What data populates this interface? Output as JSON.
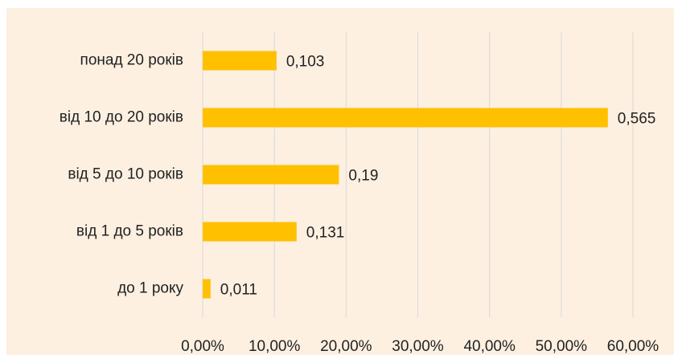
{
  "chart_data": {
    "type": "hbar",
    "categories": [
      "понад 20 років",
      "від 10 до 20 років",
      "від 5 до 10 років",
      "від 1 до 5 років",
      "до 1 року"
    ],
    "values": [
      10.3,
      56.5,
      19,
      13.1,
      1.1
    ],
    "value_labels": [
      "0,103",
      "0,565",
      "0,19",
      "0,131",
      "0,011"
    ],
    "color": "#ffc000",
    "xlim": [
      0,
      60
    ],
    "xticks": [
      {
        "value": 0,
        "label": "0,00%"
      },
      {
        "value": 10,
        "label": "10,00%"
      },
      {
        "value": 20,
        "label": "20,00%"
      },
      {
        "value": 30,
        "label": "30,00%"
      },
      {
        "value": 40,
        "label": "40,00%"
      },
      {
        "value": 50,
        "label": "50,00%"
      },
      {
        "value": 60,
        "label": "60,00%"
      }
    ],
    "grid": true
  }
}
